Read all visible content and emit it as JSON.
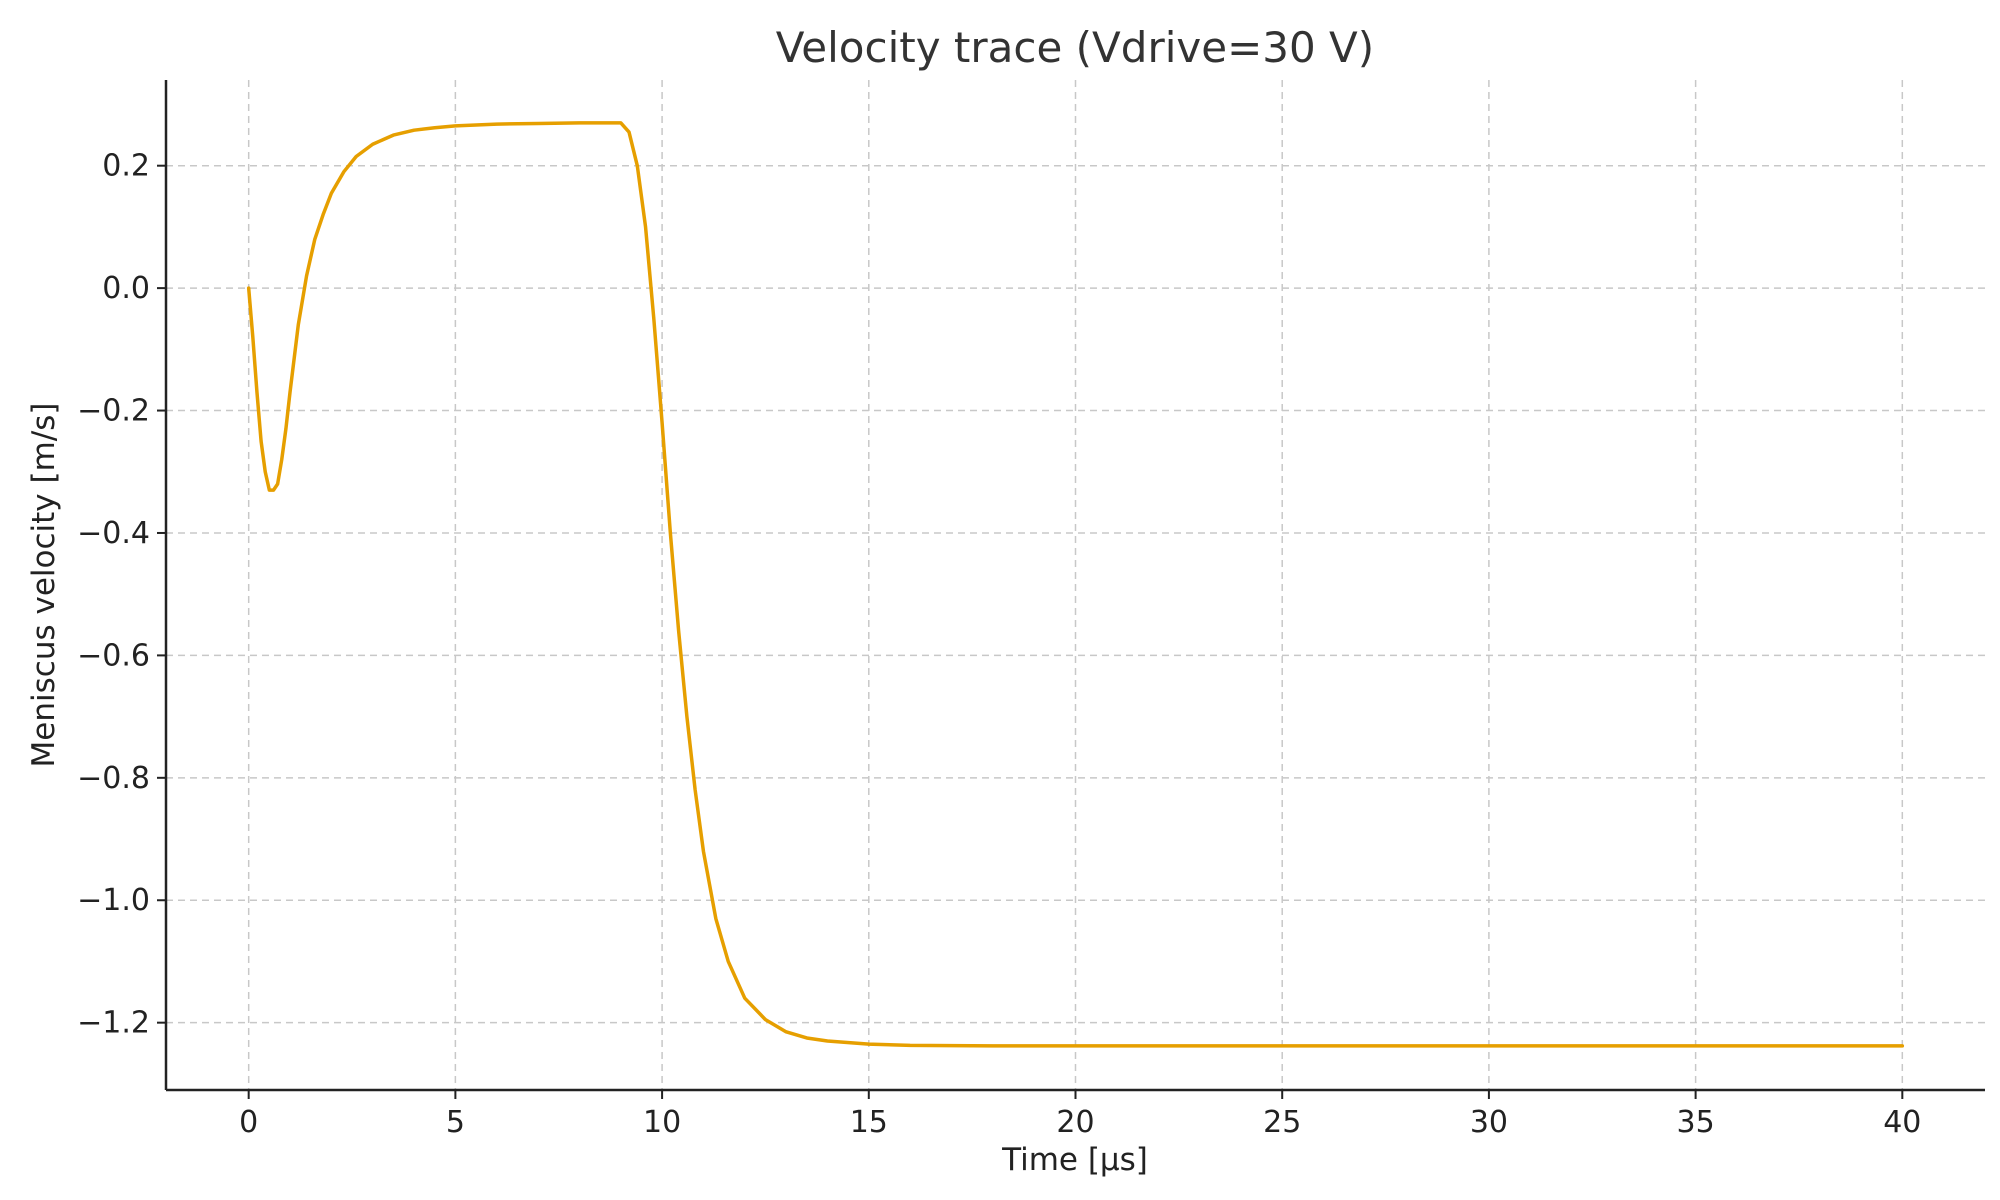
{
  "chart_data": {
    "type": "line",
    "title": "Velocity trace (Vdrive=30 V)",
    "xlabel": "Time [µs]",
    "ylabel": "Meniscus velocity [m/s]",
    "xlim": [
      -2,
      42
    ],
    "ylim": [
      -1.31,
      0.34
    ],
    "xticks": [
      0,
      5,
      10,
      15,
      20,
      25,
      30,
      35,
      40
    ],
    "xtick_labels": [
      "0",
      "5",
      "10",
      "15",
      "20",
      "25",
      "30",
      "35",
      "40"
    ],
    "yticks": [
      0.2,
      0.0,
      -0.2,
      -0.4,
      -0.6,
      -0.8,
      -1.0,
      -1.2
    ],
    "ytick_labels": [
      "0.2",
      "0.0",
      "−0.2",
      "−0.4",
      "−0.6",
      "−0.8",
      "−1.0",
      "−1.2"
    ],
    "grid": true,
    "series_color": "#E69F00",
    "series": [
      {
        "x": [
          0,
          0.1,
          0.2,
          0.3,
          0.4,
          0.5,
          0.6,
          0.7,
          0.8,
          0.9,
          1.0,
          1.2,
          1.4,
          1.6,
          1.8,
          2.0,
          2.3,
          2.6,
          3.0,
          3.5,
          4.0,
          4.5,
          5.0,
          6.0,
          7.0,
          8.0,
          8.8,
          9.0,
          9.2,
          9.4,
          9.6,
          9.8,
          10.0,
          10.2,
          10.4,
          10.6,
          10.8,
          11.0,
          11.3,
          11.6,
          12.0,
          12.5,
          13.0,
          13.5,
          14.0,
          15.0,
          16.0,
          18.0,
          20.0,
          25.0,
          30.0,
          35.0,
          40.0
        ],
        "y": [
          0.0,
          -0.08,
          -0.17,
          -0.25,
          -0.3,
          -0.33,
          -0.33,
          -0.32,
          -0.28,
          -0.23,
          -0.17,
          -0.06,
          0.02,
          0.08,
          0.12,
          0.155,
          0.19,
          0.215,
          0.235,
          0.25,
          0.258,
          0.262,
          0.265,
          0.268,
          0.269,
          0.27,
          0.27,
          0.27,
          0.255,
          0.2,
          0.1,
          -0.05,
          -0.22,
          -0.4,
          -0.56,
          -0.7,
          -0.82,
          -0.92,
          -1.03,
          -1.1,
          -1.16,
          -1.195,
          -1.215,
          -1.225,
          -1.23,
          -1.235,
          -1.237,
          -1.238,
          -1.238,
          -1.238,
          -1.238,
          -1.238,
          -1.238
        ]
      }
    ]
  }
}
